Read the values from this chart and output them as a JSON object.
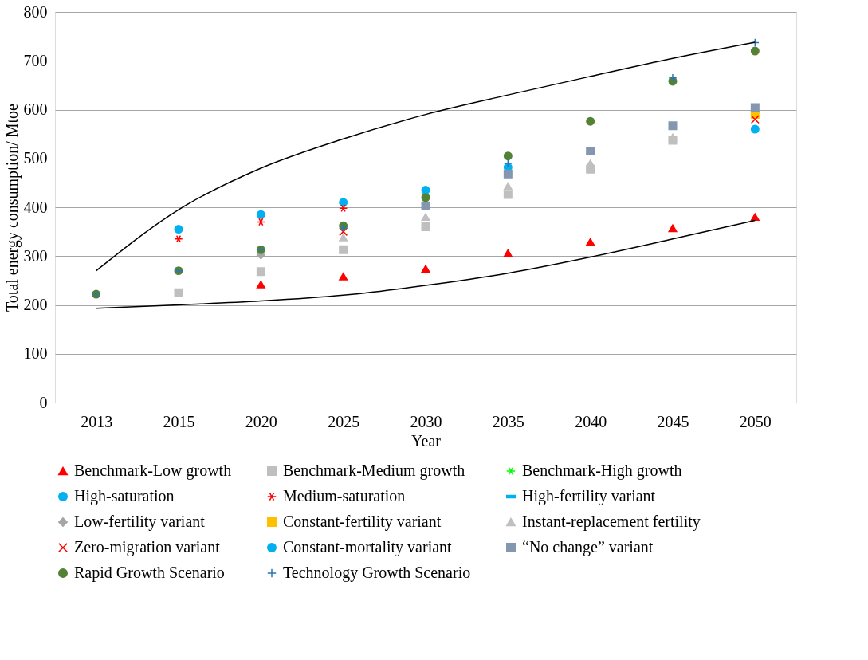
{
  "chart_data": {
    "type": "scatter",
    "xlabel": "Year",
    "ylabel": "Total energy consumption/ Mtoe",
    "categories": [
      "2013",
      "2015",
      "2020",
      "2025",
      "2030",
      "2035",
      "2040",
      "2045",
      "2050"
    ],
    "ylim": [
      0,
      800
    ],
    "yticks": [
      0,
      100,
      200,
      300,
      400,
      500,
      600,
      700,
      800
    ],
    "grid": "y",
    "legend": "bottom",
    "series": [
      {
        "name": "Benchmark-Low growth",
        "color": "#ff0000",
        "marker": "triangle",
        "values": [
          null,
          null,
          242,
          258,
          274,
          306,
          329,
          357,
          380
        ]
      },
      {
        "name": "Benchmark-Medium growth",
        "color": "#bfbfbf",
        "marker": "square",
        "values": [
          null,
          225,
          268,
          313,
          360,
          426,
          478,
          537,
          null
        ]
      },
      {
        "name": "Benchmark-High growth",
        "color": "#00ff00",
        "marker": "cross",
        "values": [
          null,
          null,
          null,
          null,
          null,
          null,
          null,
          null,
          null
        ]
      },
      {
        "name": "High-saturation",
        "color": "#00b0f0",
        "marker": "circle",
        "values": [
          null,
          355,
          385,
          410,
          435,
          482,
          null,
          null,
          null
        ]
      },
      {
        "name": "Medium-saturation",
        "color": "#ff0000",
        "marker": "cross",
        "values": [
          null,
          335,
          370,
          398,
          null,
          null,
          null,
          null,
          null
        ]
      },
      {
        "name": "High-fertility variant",
        "color": "#00b0f0",
        "marker": "dash",
        "values": [
          null,
          null,
          null,
          null,
          null,
          null,
          null,
          null,
          null
        ]
      },
      {
        "name": "Low-fertility variant",
        "color": "#a6a6a6",
        "marker": "diamond",
        "values": [
          null,
          null,
          302,
          null,
          null,
          null,
          null,
          null,
          null
        ]
      },
      {
        "name": "Constant-fertility variant",
        "color": "#ffc000",
        "marker": "square",
        "values": [
          null,
          null,
          null,
          null,
          null,
          null,
          null,
          null,
          590
        ]
      },
      {
        "name": "Instant-replacement fertility",
        "color": "#c0c0c0",
        "marker": "triangle",
        "values": [
          null,
          null,
          null,
          338,
          380,
          443,
          490,
          543,
          null
        ]
      },
      {
        "name": "Zero-migration variant",
        "color": "#ff0000",
        "marker": "x",
        "values": [
          null,
          null,
          null,
          350,
          null,
          null,
          null,
          null,
          580
        ]
      },
      {
        "name": "Constant-mortality variant",
        "color": "#00b0f0",
        "marker": "circle",
        "values": [
          null,
          null,
          null,
          null,
          null,
          null,
          null,
          null,
          560
        ]
      },
      {
        "name": "“No change” variant",
        "color": "#8497b0",
        "marker": "square",
        "values": [
          null,
          null,
          null,
          null,
          403,
          468,
          515,
          567,
          604
        ]
      },
      {
        "name": "Rapid Growth Scenario",
        "color": "#548235",
        "marker": "circle",
        "values": [
          222,
          270,
          313,
          362,
          420,
          505,
          576,
          658,
          720
        ]
      },
      {
        "name": "Technology Growth Scenario",
        "color": "#2e75b6",
        "marker": "plus",
        "values": [
          222,
          270,
          313,
          358,
          null,
          490,
          null,
          665,
          737
        ]
      },
      {
        "type": "line",
        "color": "#000000",
        "marker": "none",
        "values": [
          270,
          395,
          480,
          540,
          590,
          630,
          668,
          705,
          738
        ]
      },
      {
        "type": "line",
        "color": "#000000",
        "marker": "none",
        "values": [
          193,
          200,
          208,
          220,
          240,
          265,
          298,
          335,
          373
        ]
      }
    ]
  }
}
